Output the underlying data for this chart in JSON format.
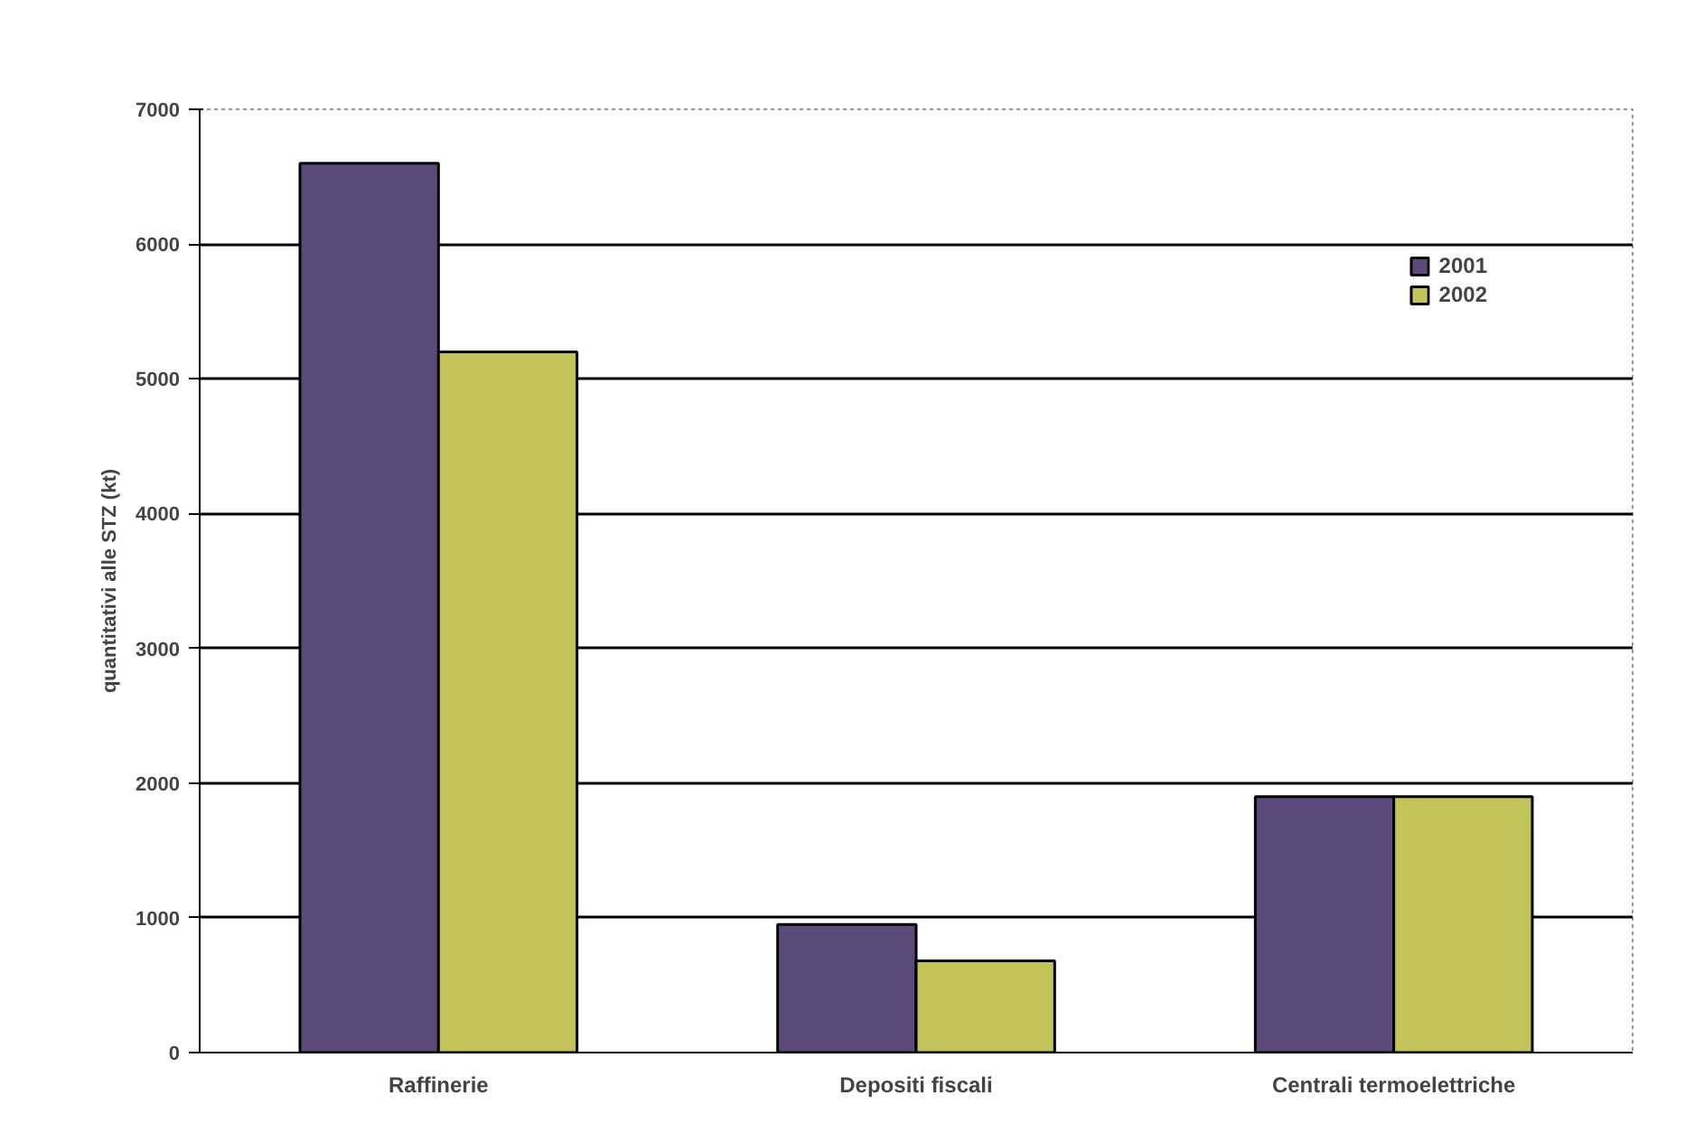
{
  "chart_data": {
    "type": "bar",
    "ylabel": "quantitativi alle STZ (kt)",
    "categories": [
      "Raffinerie",
      "Depositi fiscali",
      "Centrali termoelettriche"
    ],
    "series": [
      {
        "name": "2001",
        "color": "#5c4a7a",
        "values": [
          6600,
          950,
          1900
        ]
      },
      {
        "name": "2002",
        "color": "#c2c45a",
        "values": [
          5200,
          680,
          1900
        ]
      }
    ],
    "ylim": [
      0,
      7000
    ],
    "yticks": [
      0,
      1000,
      2000,
      3000,
      4000,
      5000,
      6000,
      7000
    ],
    "grid": "y",
    "legend": "top right"
  }
}
